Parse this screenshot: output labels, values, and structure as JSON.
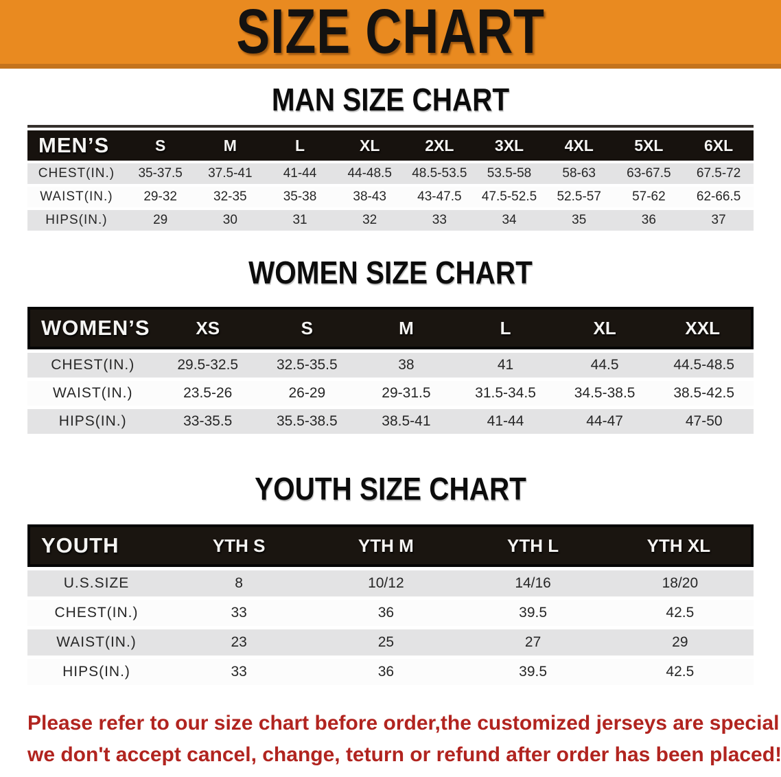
{
  "banner": {
    "title": "SIZE CHART"
  },
  "sections": [
    {
      "heading": "MAN SIZE CHART",
      "table": {
        "header": [
          "MEN’S",
          "S",
          "M",
          "L",
          "XL",
          "2XL",
          "3XL",
          "4XL",
          "5XL",
          "6XL"
        ],
        "rows": [
          [
            "CHEST(IN.)",
            "35-37.5",
            "37.5-41",
            "41-44",
            "44-48.5",
            "48.5-53.5",
            "53.5-58",
            "58-63",
            "63-67.5",
            "67.5-72"
          ],
          [
            "WAIST(IN.)",
            "29-32",
            "32-35",
            "35-38",
            "38-43",
            "43-47.5",
            "47.5-52.5",
            "52.5-57",
            "57-62",
            "62-66.5"
          ],
          [
            "HIPS(IN.)",
            "29",
            "30",
            "31",
            "32",
            "33",
            "34",
            "35",
            "36",
            "37"
          ]
        ]
      }
    },
    {
      "heading": "WOMEN SIZE CHART",
      "table": {
        "header": [
          "WOMEN’S",
          "XS",
          "S",
          "M",
          "L",
          "XL",
          "XXL"
        ],
        "rows": [
          [
            "CHEST(IN.)",
            "29.5-32.5",
            "32.5-35.5",
            "38",
            "41",
            "44.5",
            "44.5-48.5"
          ],
          [
            "WAIST(IN.)",
            "23.5-26",
            "26-29",
            "29-31.5",
            "31.5-34.5",
            "34.5-38.5",
            "38.5-42.5"
          ],
          [
            "HIPS(IN.)",
            "33-35.5",
            "35.5-38.5",
            "38.5-41",
            "41-44",
            "44-47",
            "47-50"
          ]
        ]
      }
    },
    {
      "heading": "YOUTH SIZE CHART",
      "table": {
        "header": [
          "YOUTH",
          "YTH S",
          "YTH M",
          "YTH L",
          "YTH XL"
        ],
        "rows": [
          [
            "U.S.SIZE",
            "8",
            "10/12",
            "14/16",
            "18/20"
          ],
          [
            "CHEST(IN.)",
            "33",
            "36",
            "39.5",
            "42.5"
          ],
          [
            "WAIST(IN.)",
            "23",
            "25",
            "27",
            "29"
          ],
          [
            "HIPS(IN.)",
            "33",
            "36",
            "39.5",
            "42.5"
          ]
        ]
      }
    }
  ],
  "notice": {
    "line1": "Please refer to our size chart before order,the customized jerseys are special products,",
    "line2": "we don't accept cancel, change, teturn or refund after order has been placed!"
  },
  "colors": {
    "banner_bg": "#e98a20",
    "banner_border": "#c4731c",
    "header_bar": "#17120e",
    "row_stripe": "#e3e3e4",
    "row_white": "#fcfcfc",
    "notice_red": "#b1241f"
  }
}
